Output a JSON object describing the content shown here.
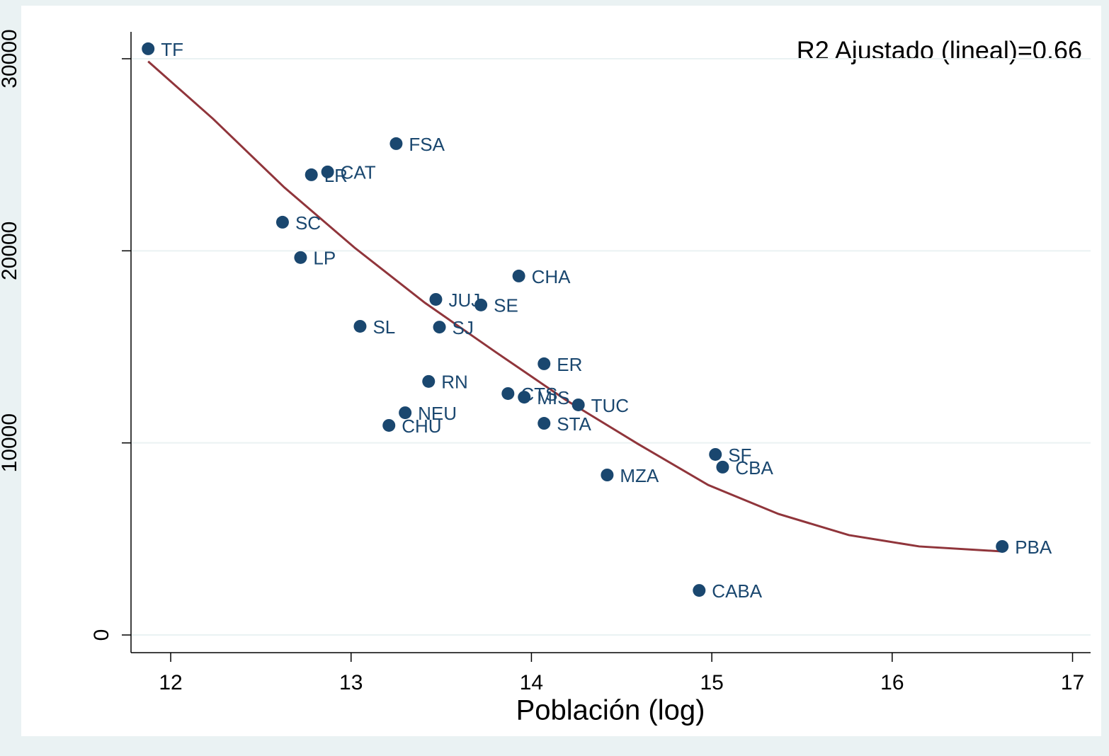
{
  "chart_data": {
    "type": "scatter",
    "annotation": "R2 Ajustado (lineal)=0.66",
    "x_label": "Población (log)",
    "xlim": [
      11.78,
      17.1
    ],
    "ylim": [
      -920,
      31400
    ],
    "xticks": [
      12,
      13,
      14,
      15,
      16,
      17
    ],
    "yticks": [
      0,
      10000,
      20000,
      30000
    ],
    "grid": true,
    "points": {
      "color": "#1a476f",
      "labels": [
        "TF",
        "FSA",
        "CAT",
        "LR",
        "SC",
        "LP",
        "CHA",
        "JUJ",
        "SE",
        "SL",
        "SJ",
        "ER",
        "RN",
        "CTS",
        "MIS",
        "TUC",
        "NEU",
        "CHU",
        "STA",
        "SF",
        "CBA",
        "MZA",
        "PBA",
        "CABA"
      ],
      "x": [
        11.875,
        13.25,
        12.87,
        12.78,
        12.62,
        12.72,
        13.93,
        13.47,
        13.72,
        13.05,
        13.49,
        14.07,
        13.43,
        13.87,
        13.96,
        14.26,
        13.3,
        13.21,
        14.07,
        15.02,
        15.06,
        14.42,
        16.61,
        14.93
      ],
      "y": [
        30520,
        25580,
        24110,
        23960,
        21490,
        19650,
        18690,
        17470,
        17180,
        16070,
        16030,
        14120,
        13200,
        12570,
        12380,
        11980,
        11570,
        10910,
        11020,
        9400,
        8740,
        8330,
        4610,
        2320
      ]
    },
    "fit_line": {
      "color": "#90353b",
      "x": [
        11.875,
        12.235,
        12.63,
        13.02,
        13.41,
        13.8,
        14.19,
        14.59,
        14.98,
        15.37,
        15.76,
        16.15,
        16.61
      ],
      "y": [
        29860,
        26870,
        23300,
        20160,
        17290,
        14740,
        12240,
        9950,
        7810,
        6300,
        5200,
        4610,
        4350
      ]
    }
  }
}
